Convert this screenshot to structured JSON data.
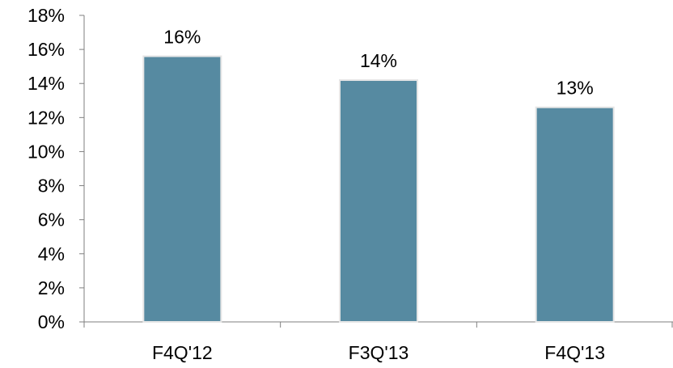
{
  "chart_data": {
    "type": "bar",
    "categories": [
      "F4Q'12",
      "F3Q'13",
      "F4Q'13"
    ],
    "values": [
      15.6,
      14.2,
      12.6
    ],
    "data_labels": [
      "16%",
      "14%",
      "13%"
    ],
    "y_ticks": [
      "0%",
      "2%",
      "4%",
      "6%",
      "8%",
      "10%",
      "12%",
      "14%",
      "16%",
      "18%"
    ],
    "ylim": [
      0,
      18
    ],
    "y_unit": "%",
    "grid": false,
    "legend": "none",
    "colors": {
      "bar": "#568aa1",
      "bar_edge": "#e6e6e6",
      "axis": "#7f7f7f",
      "text": "#000000"
    }
  }
}
